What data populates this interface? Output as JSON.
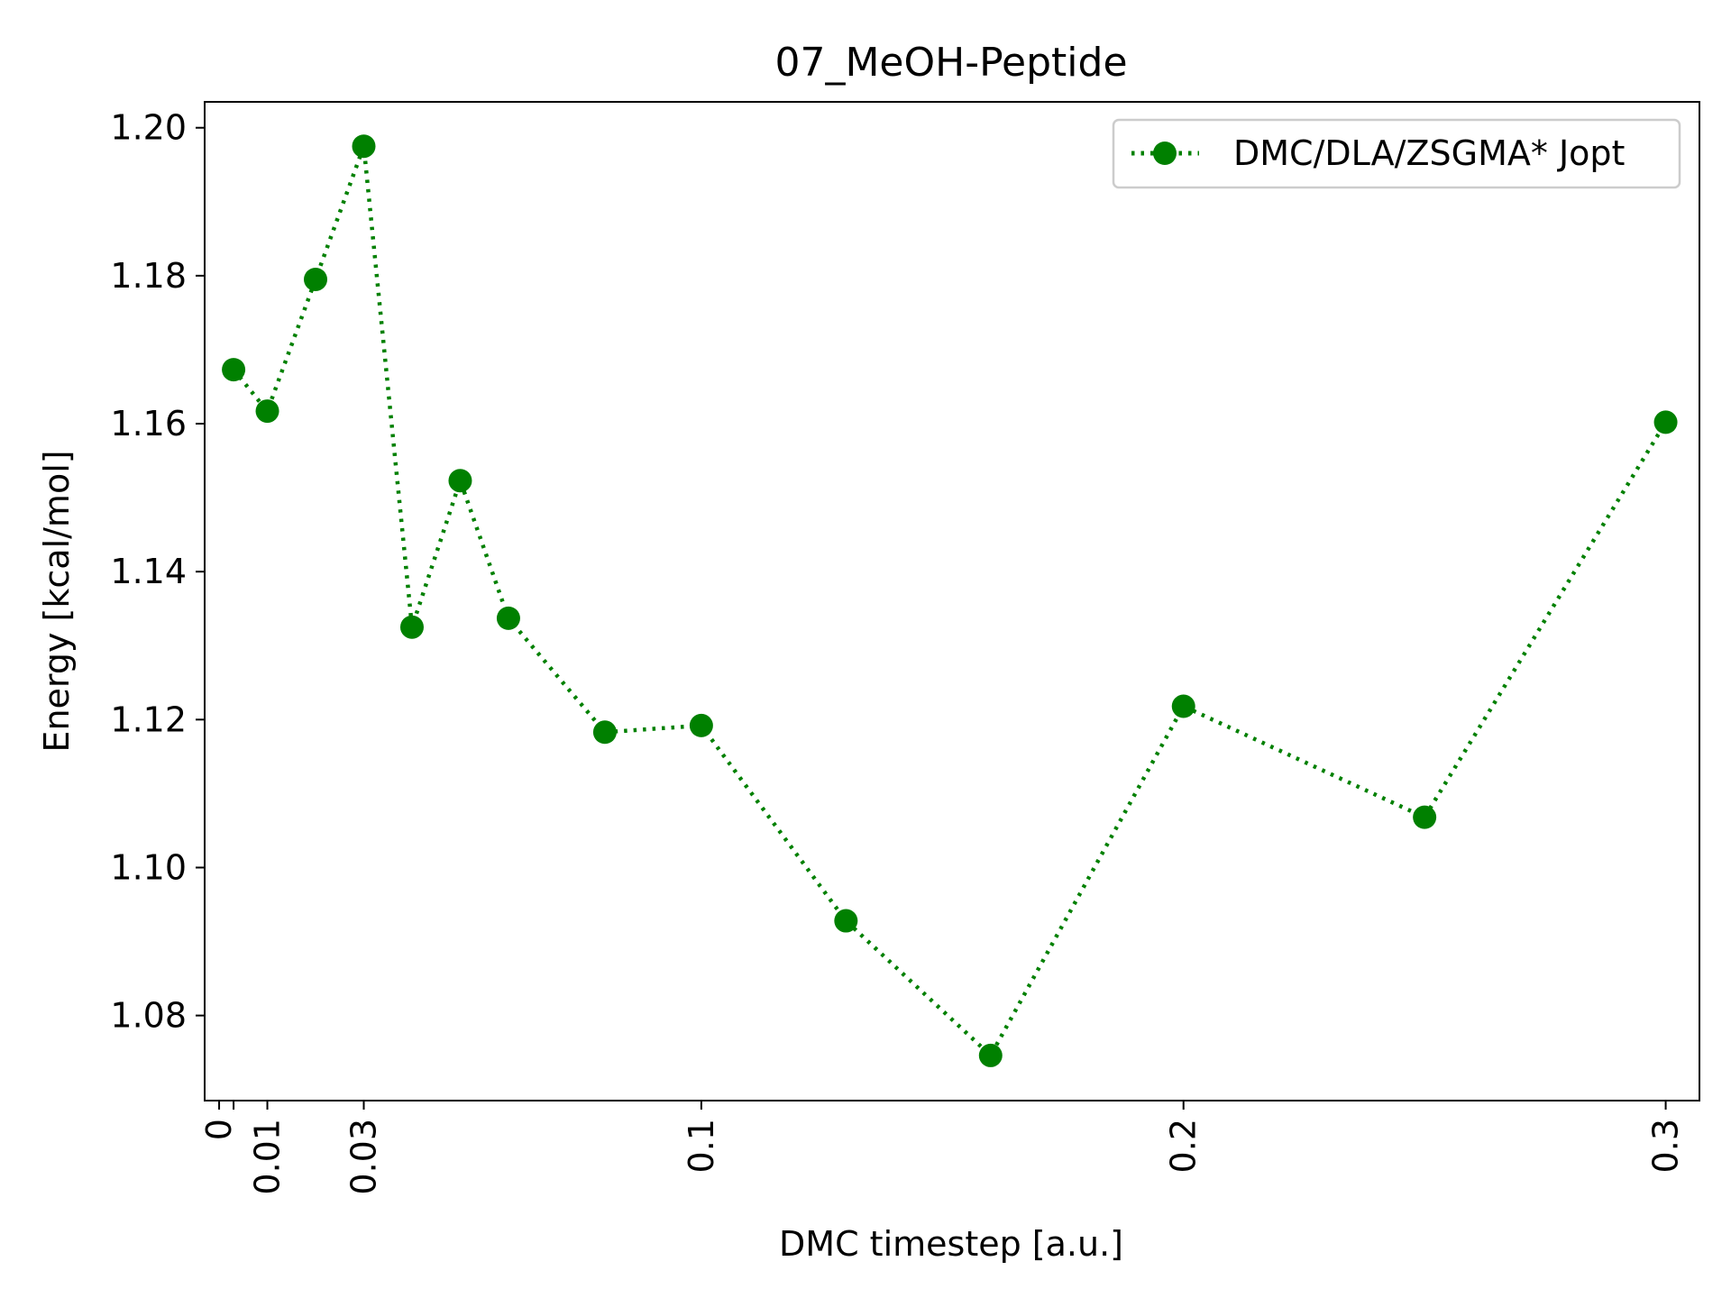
{
  "chart_data": {
    "type": "line",
    "title": "07_MeOH-Peptide",
    "xlabel": "DMC timestep [a.u.]",
    "ylabel": "Energy [kcal/mol]",
    "xlim": [
      -0.003,
      0.307
    ],
    "ylim": [
      1.0685,
      1.2035
    ],
    "x_ticks": [
      {
        "value": 0,
        "label": "0"
      },
      {
        "value": 0.003,
        "label": ""
      },
      {
        "value": 0.01,
        "label": "0.01"
      },
      {
        "value": 0.03,
        "label": "0.03"
      },
      {
        "value": 0.1,
        "label": "0.1"
      },
      {
        "value": 0.2,
        "label": "0.2"
      },
      {
        "value": 0.3,
        "label": "0.3"
      }
    ],
    "y_ticks": [
      {
        "value": 1.08,
        "label": "1.08"
      },
      {
        "value": 1.1,
        "label": "1.10"
      },
      {
        "value": 1.12,
        "label": "1.12"
      },
      {
        "value": 1.14,
        "label": "1.14"
      },
      {
        "value": 1.16,
        "label": "1.16"
      },
      {
        "value": 1.18,
        "label": "1.18"
      },
      {
        "value": 1.2,
        "label": "1.20"
      }
    ],
    "grid": false,
    "legend_position": "top-right",
    "series": [
      {
        "name": "DMC/DLA/ZSGMA* Jopt",
        "color": "#008000",
        "line_style": "dotted",
        "marker": "circle",
        "x": [
          0.003,
          0.01,
          0.02,
          0.03,
          0.04,
          0.05,
          0.06,
          0.08,
          0.1,
          0.13,
          0.16,
          0.2,
          0.25,
          0.3
        ],
        "y": [
          1.1673,
          1.1617,
          1.1795,
          1.1975,
          1.1325,
          1.1523,
          1.1337,
          1.1183,
          1.1192,
          1.0928,
          1.0746,
          1.1218,
          1.1068,
          1.1602
        ]
      }
    ]
  }
}
